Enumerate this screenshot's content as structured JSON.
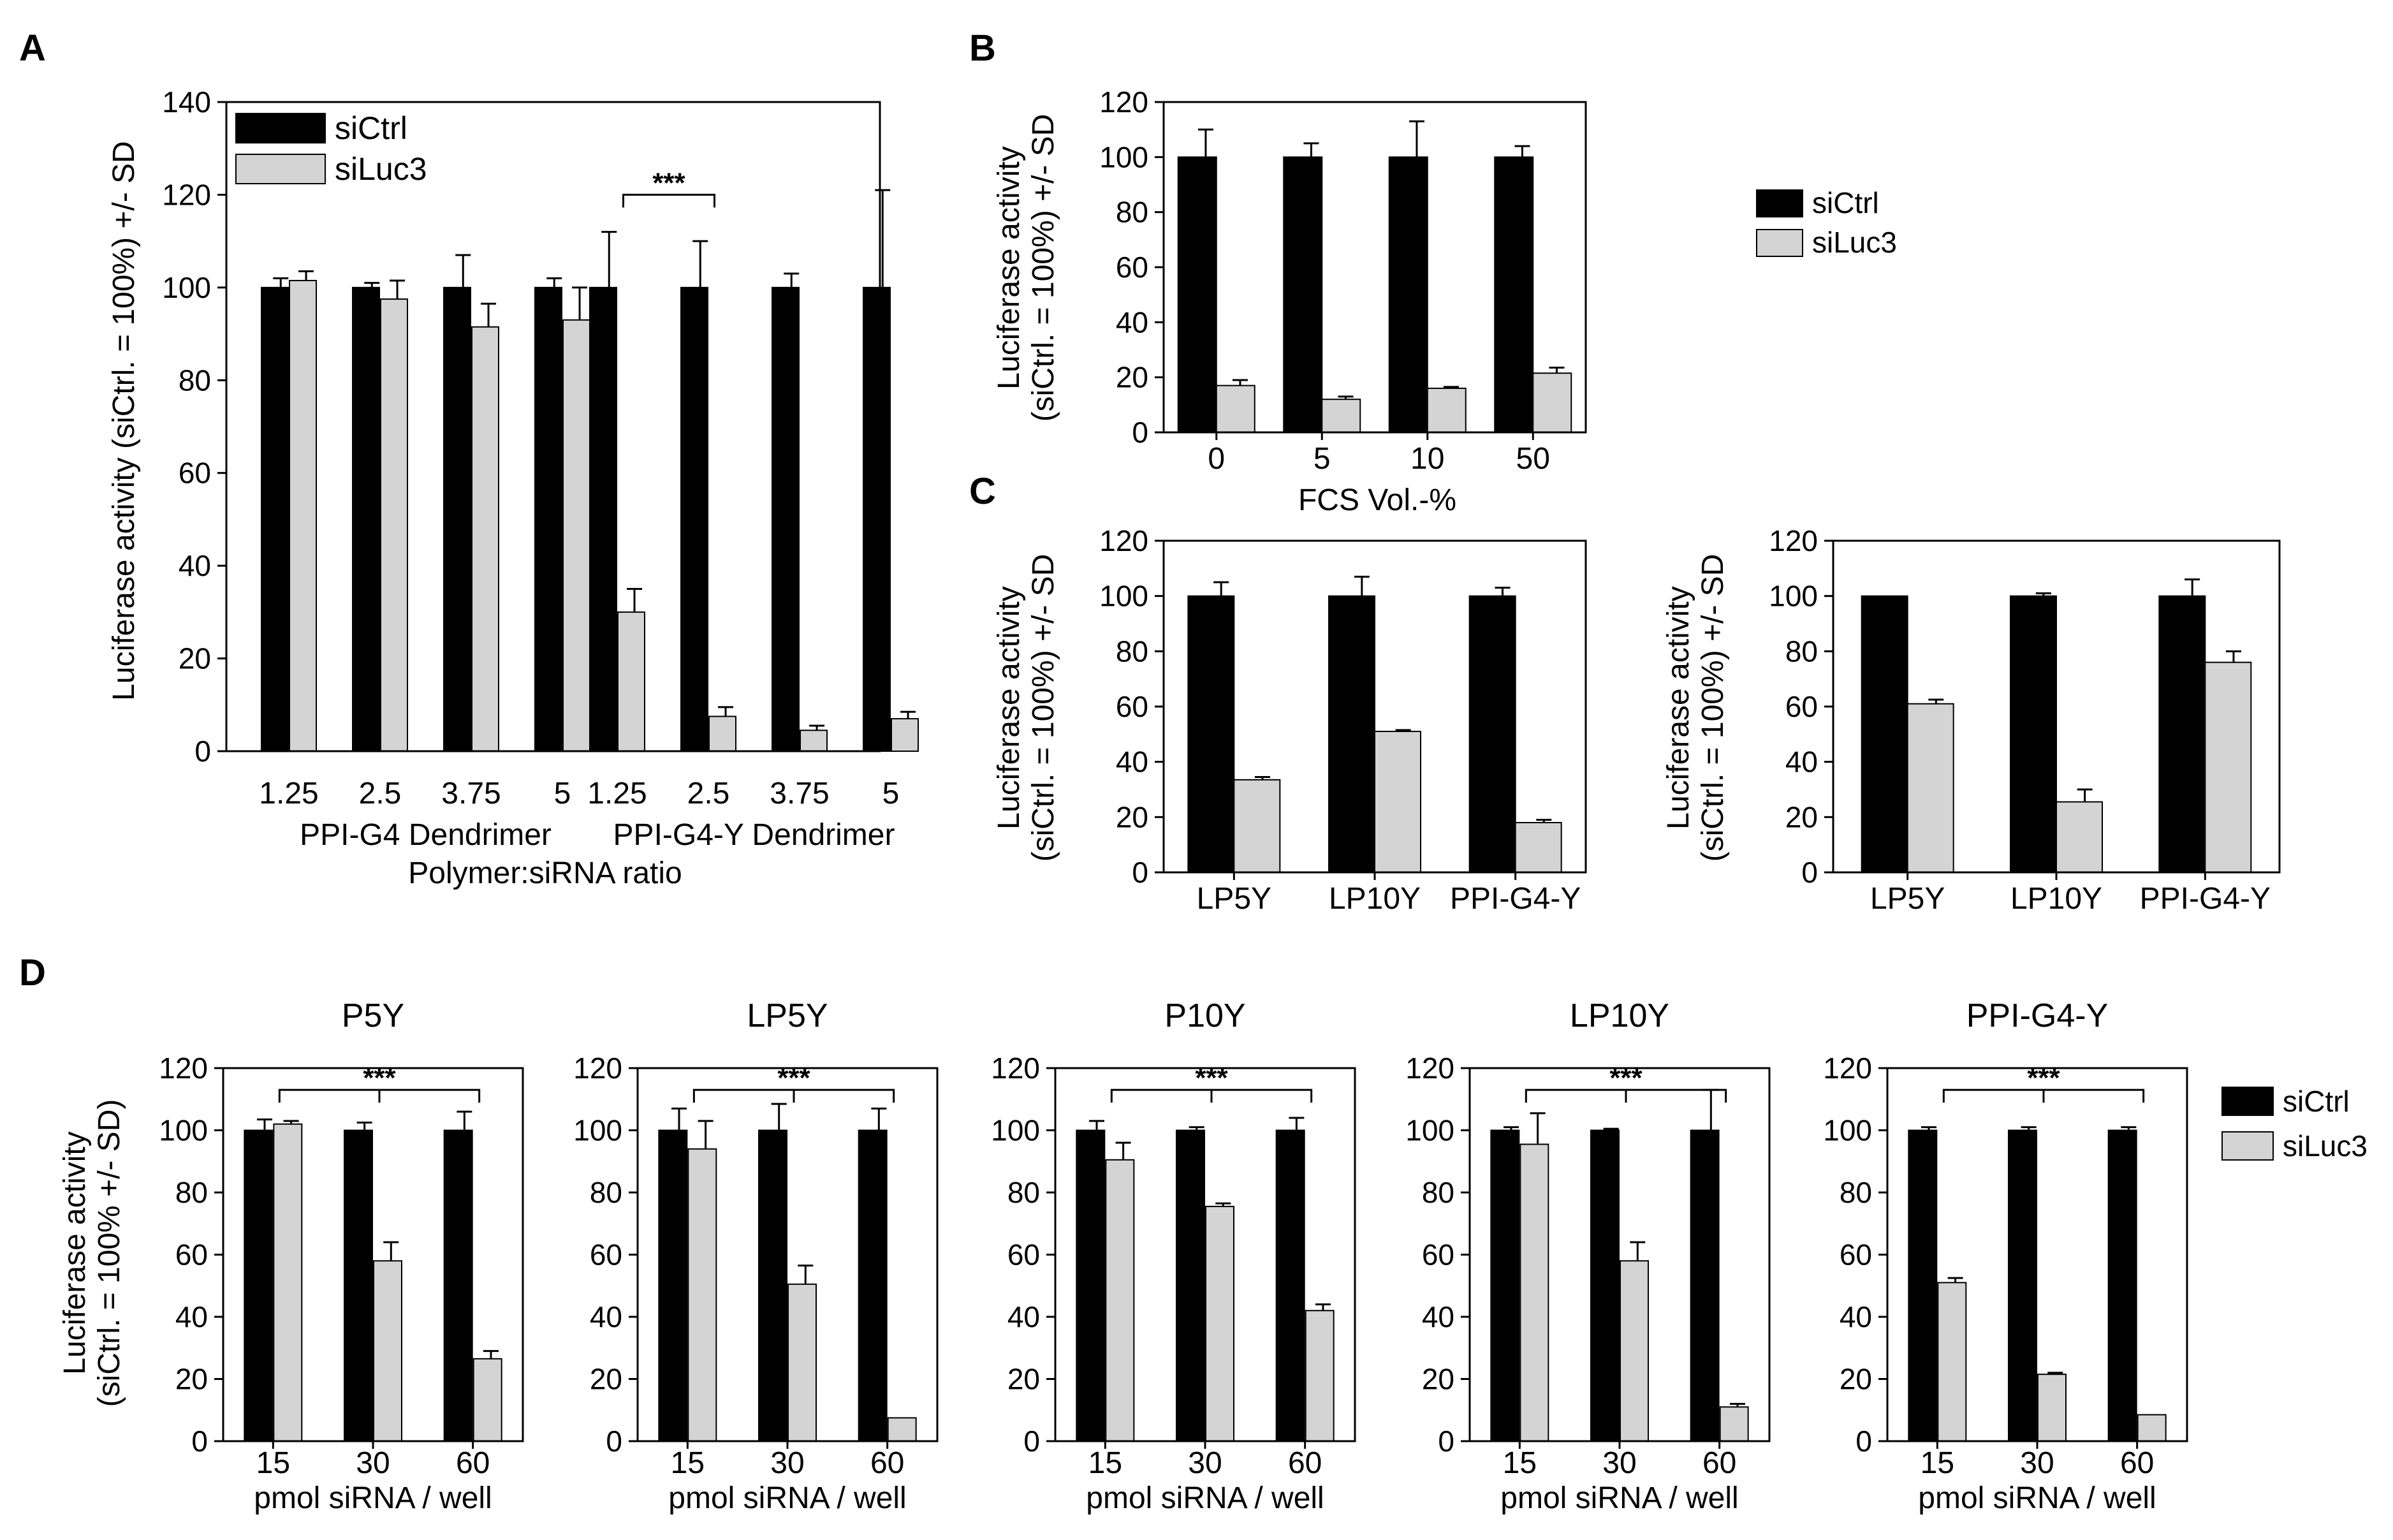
{
  "colors": {
    "siCtrl": "#000000",
    "siLuc3": "#d4d4d4",
    "axis": "#000000"
  },
  "legends": {
    "A": [
      "siCtrl",
      "siLuc3"
    ],
    "B": [
      "siCtrl",
      "siLuc3"
    ],
    "D": [
      "siCtrl",
      "siLuc3"
    ]
  },
  "chart_data": [
    {
      "id": "A",
      "panel_label": "A",
      "type": "bar",
      "ylabel": "Luciferase activity (siCtrl. = 100%) +/- SD",
      "ylim": [
        0,
        140
      ],
      "yticks": [
        0,
        20,
        40,
        60,
        80,
        100,
        120,
        140
      ],
      "categories": [
        "1.25",
        "2.5",
        "3.75",
        "5",
        "1.25",
        "2.5",
        "3.75",
        "5"
      ],
      "group_labels": [
        "PPI-G4 Dendrimer",
        "PPI-G4-Y Dendrimer"
      ],
      "xlabel": "Polymer:siRNA ratio",
      "series": [
        {
          "name": "siCtrl",
          "values": [
            100,
            100,
            100,
            100,
            100,
            100,
            100,
            100
          ],
          "err": [
            2,
            1,
            7,
            2,
            12,
            10,
            3,
            21
          ]
        },
        {
          "name": "siLuc3",
          "values": [
            101.5,
            97.5,
            91.5,
            93,
            30,
            7.5,
            4.5,
            7
          ],
          "err": [
            2,
            4,
            5,
            7,
            5,
            2,
            1,
            1.5
          ]
        }
      ],
      "significance": [
        {
          "label": "***",
          "from": 4,
          "to": 5
        }
      ],
      "legend": "top-left"
    },
    {
      "id": "B",
      "panel_label": "B",
      "type": "bar",
      "ylabel": [
        "Luciferase activity",
        "(siCtrl. = 100%) +/- SD"
      ],
      "ylim": [
        0,
        120
      ],
      "yticks": [
        0,
        20,
        40,
        60,
        80,
        100,
        120
      ],
      "categories": [
        "0",
        "5",
        "10",
        "50"
      ],
      "xlabel": "FCS Vol.-%",
      "series": [
        {
          "name": "siCtrl",
          "values": [
            100,
            100,
            100,
            100
          ],
          "err": [
            10,
            5,
            13,
            4
          ]
        },
        {
          "name": "siLuc3",
          "values": [
            17,
            12,
            16,
            21.5
          ],
          "err": [
            2,
            1,
            0.5,
            2
          ]
        }
      ],
      "legend": "right"
    },
    {
      "id": "C1",
      "panel_label": "C",
      "type": "bar",
      "ylabel": [
        "Luciferase activity",
        "(siCtrl. = 100%) +/- SD"
      ],
      "ylim": [
        0,
        120
      ],
      "yticks": [
        0,
        20,
        40,
        60,
        80,
        100,
        120
      ],
      "categories": [
        "LP5Y",
        "LP10Y",
        "PPI-G4-Y"
      ],
      "xlabel": "",
      "series": [
        {
          "name": "siCtrl",
          "values": [
            100,
            100,
            100
          ],
          "err": [
            5,
            7,
            3
          ]
        },
        {
          "name": "siLuc3",
          "values": [
            33.5,
            51,
            18
          ],
          "err": [
            1,
            0.5,
            1
          ]
        }
      ]
    },
    {
      "id": "C2",
      "panel_label": "",
      "type": "bar",
      "ylabel": [
        "Luciferase activity",
        "(siCtrl. = 100%) +/- SD"
      ],
      "ylim": [
        0,
        120
      ],
      "yticks": [
        0,
        20,
        40,
        60,
        80,
        100,
        120
      ],
      "categories": [
        "LP5Y",
        "LP10Y",
        "PPI-G4-Y"
      ],
      "xlabel": "",
      "series": [
        {
          "name": "siCtrl",
          "values": [
            100,
            100,
            100
          ],
          "err": [
            0,
            1,
            6
          ]
        },
        {
          "name": "siLuc3",
          "values": [
            61,
            25.5,
            76
          ],
          "err": [
            1.5,
            4.5,
            4
          ]
        }
      ]
    },
    {
      "id": "D1",
      "panel_label": "D",
      "type": "bar",
      "title": "P5Y",
      "ylabel": [
        "Luciferase activity",
        "(siCtrl. = 100% +/- SD)"
      ],
      "ylim": [
        0,
        120
      ],
      "yticks": [
        0,
        20,
        40,
        60,
        80,
        100,
        120
      ],
      "categories": [
        "15",
        "30",
        "60"
      ],
      "xlabel": "pmol siRNA / well",
      "series": [
        {
          "name": "siCtrl",
          "values": [
            100,
            100,
            100
          ],
          "err": [
            3.5,
            2.5,
            6
          ]
        },
        {
          "name": "siLuc3",
          "values": [
            102,
            58,
            26.5
          ],
          "err": [
            1,
            6,
            2.5
          ]
        }
      ],
      "significance": [
        {
          "label": "***",
          "from": 0,
          "to": 2
        }
      ]
    },
    {
      "id": "D2",
      "panel_label": "",
      "type": "bar",
      "title": "LP5Y",
      "ylabel": "",
      "ylim": [
        0,
        120
      ],
      "yticks": [
        0,
        20,
        40,
        60,
        80,
        100,
        120
      ],
      "categories": [
        "15",
        "30",
        "60"
      ],
      "xlabel": "pmol siRNA / well",
      "series": [
        {
          "name": "siCtrl",
          "values": [
            100,
            100,
            100
          ],
          "err": [
            7,
            8.5,
            7
          ]
        },
        {
          "name": "siLuc3",
          "values": [
            94,
            50.5,
            7.5
          ],
          "err": [
            9,
            6,
            0
          ]
        }
      ],
      "significance": [
        {
          "label": "***",
          "from": 0,
          "to": 2
        }
      ]
    },
    {
      "id": "D3",
      "panel_label": "",
      "type": "bar",
      "title": "P10Y",
      "ylabel": "",
      "ylim": [
        0,
        120
      ],
      "yticks": [
        0,
        20,
        40,
        60,
        80,
        100,
        120
      ],
      "categories": [
        "15",
        "30",
        "60"
      ],
      "xlabel": "pmol siRNA / well",
      "series": [
        {
          "name": "siCtrl",
          "values": [
            100,
            100,
            100
          ],
          "err": [
            3,
            1,
            4
          ]
        },
        {
          "name": "siLuc3",
          "values": [
            90.5,
            75.5,
            42
          ],
          "err": [
            5.5,
            1,
            2
          ]
        }
      ],
      "significance": [
        {
          "label": "***",
          "from": 0,
          "to": 2
        }
      ]
    },
    {
      "id": "D4",
      "panel_label": "",
      "type": "bar",
      "title": "LP10Y",
      "ylabel": "",
      "ylim": [
        0,
        120
      ],
      "yticks": [
        0,
        20,
        40,
        60,
        80,
        100,
        120
      ],
      "categories": [
        "15",
        "30",
        "60"
      ],
      "xlabel": "pmol siRNA / well",
      "series": [
        {
          "name": "siCtrl",
          "values": [
            100,
            100,
            100
          ],
          "err": [
            1,
            0.5,
            13
          ]
        },
        {
          "name": "siLuc3",
          "values": [
            95.5,
            58,
            11
          ],
          "err": [
            10,
            6,
            1
          ]
        }
      ],
      "significance": [
        {
          "label": "***",
          "from": 0,
          "to": 2
        }
      ]
    },
    {
      "id": "D5",
      "panel_label": "",
      "type": "bar",
      "title": "PPI-G4-Y",
      "ylabel": "",
      "ylim": [
        0,
        120
      ],
      "yticks": [
        0,
        20,
        40,
        60,
        80,
        100,
        120
      ],
      "categories": [
        "15",
        "30",
        "60"
      ],
      "xlabel": "pmol siRNA / well",
      "series": [
        {
          "name": "siCtrl",
          "values": [
            100,
            100,
            100
          ],
          "err": [
            1,
            1,
            1
          ]
        },
        {
          "name": "siLuc3",
          "values": [
            51,
            21.5,
            8.5
          ],
          "err": [
            1.5,
            0.5,
            0
          ]
        }
      ],
      "significance": [
        {
          "label": "***",
          "from": 0,
          "to": 2
        }
      ],
      "legend": "right"
    }
  ]
}
